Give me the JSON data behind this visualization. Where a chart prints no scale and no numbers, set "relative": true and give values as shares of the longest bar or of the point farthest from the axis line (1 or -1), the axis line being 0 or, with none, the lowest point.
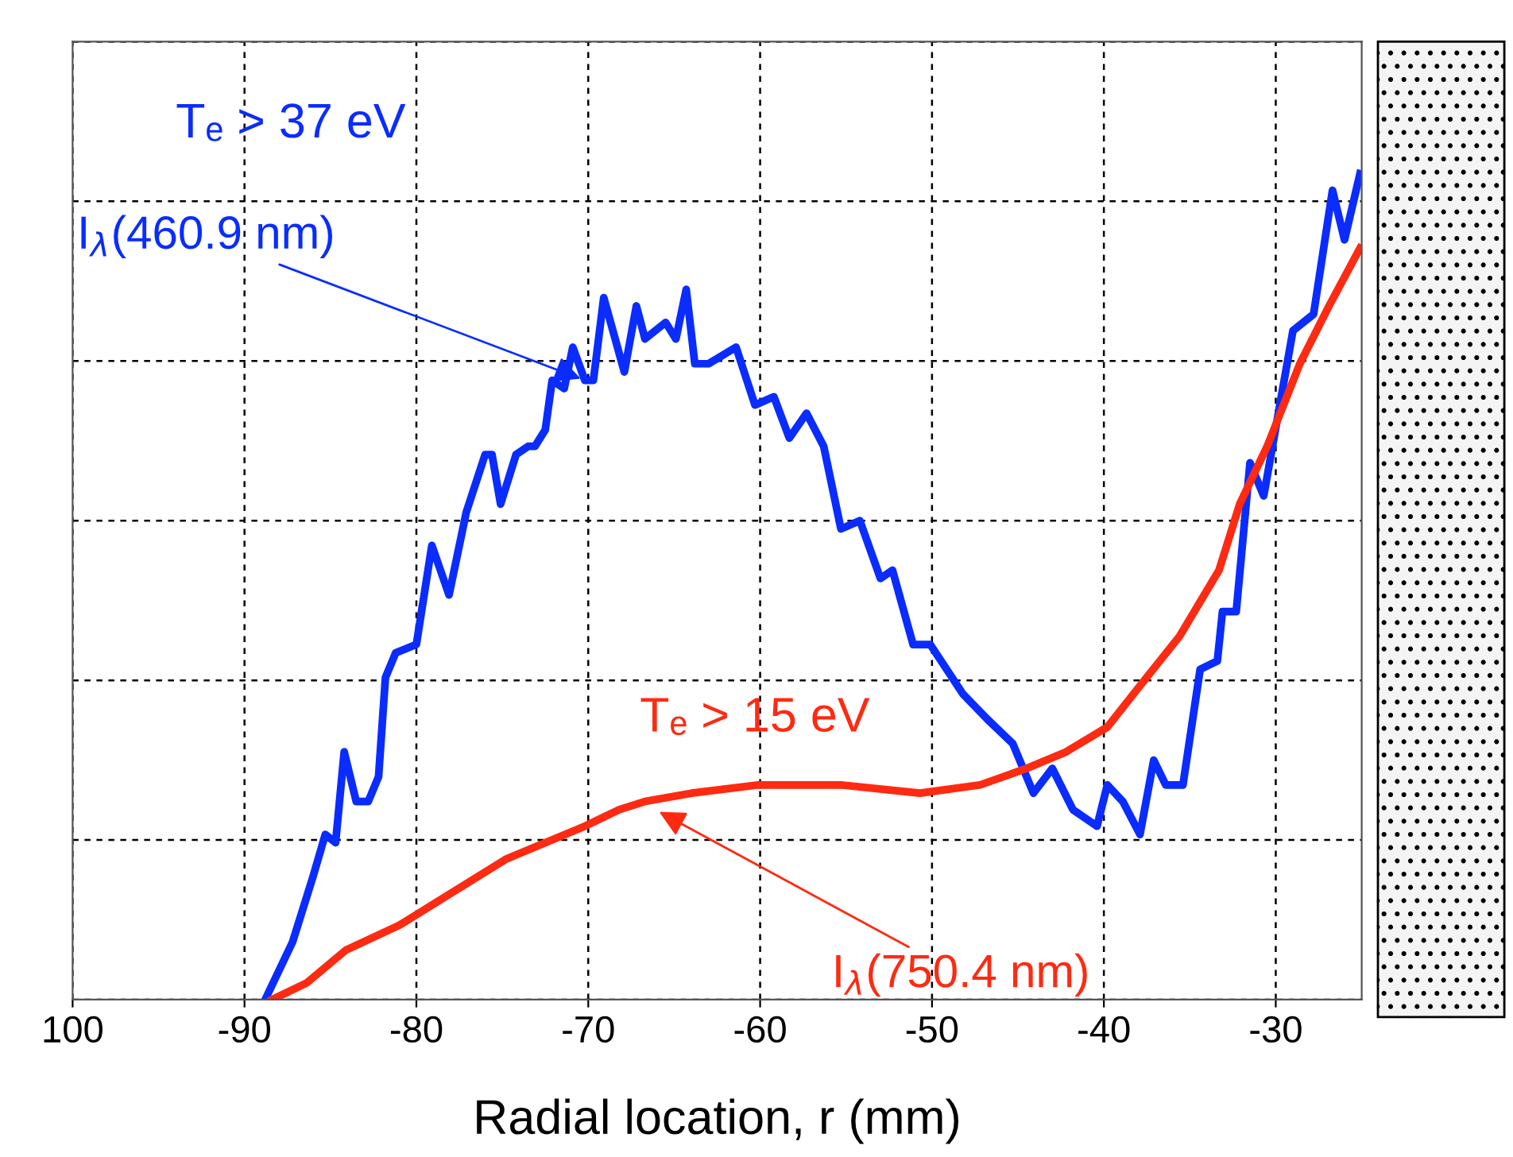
{
  "chart_data": {
    "type": "line",
    "relative": true,
    "xlabel": "Radial location, r (mm)",
    "xlim": [
      -100,
      -25
    ],
    "xticks": [
      {
        "value": -100,
        "label": "100"
      },
      -90,
      -80,
      -70,
      -60,
      -50,
      -40,
      -30
    ],
    "grid": true,
    "line_style": "solid",
    "series": [
      {
        "color": "#0a2cff",
        "x": [
          -88.8,
          -87.2,
          -86.0,
          -85.3,
          -84.7,
          -84.2,
          -83.5,
          -82.8,
          -82.2,
          -81.8,
          -81.2,
          -80.0,
          -79.1,
          -78.1,
          -77.1,
          -76.0,
          -75.6,
          -75.1,
          -74.2,
          -73.5,
          -73.1,
          -72.5,
          -72.1,
          -71.4,
          -70.9,
          -70.2,
          -69.7,
          -69.1,
          -67.9,
          -67.2,
          -66.7,
          -65.5,
          -64.9,
          -64.3,
          -63.8,
          -63.0,
          -61.4,
          -60.3,
          -59.2,
          -58.3,
          -57.3,
          -56.3,
          -55.3,
          -54.2,
          -53.0,
          -52.3,
          -51.1,
          -50.1,
          -48.2,
          -46.8,
          -45.3,
          -44.1,
          -43.0,
          -41.8,
          -40.4,
          -39.8,
          -38.9,
          -37.9,
          -37.1,
          -36.4,
          -35.4,
          -34.4,
          -33.4,
          -33.1,
          -32.3,
          -31.5,
          -30.7,
          -29.0,
          -27.8,
          -26.7,
          -26.0,
          -25.1
        ],
        "values": [
          0,
          0.07,
          0.15,
          0.2,
          0.19,
          0.3,
          0.24,
          0.24,
          0.27,
          0.39,
          0.42,
          0.43,
          0.55,
          0.49,
          0.59,
          0.66,
          0.66,
          0.6,
          0.66,
          0.67,
          0.67,
          0.69,
          0.75,
          0.74,
          0.79,
          0.75,
          0.75,
          0.85,
          0.76,
          0.84,
          0.8,
          0.82,
          0.8,
          0.86,
          0.77,
          0.77,
          0.79,
          0.72,
          0.73,
          0.68,
          0.71,
          0.67,
          0.57,
          0.58,
          0.51,
          0.52,
          0.43,
          0.43,
          0.37,
          0.34,
          0.31,
          0.25,
          0.28,
          0.23,
          0.21,
          0.26,
          0.24,
          0.2,
          0.29,
          0.26,
          0.26,
          0.4,
          0.41,
          0.47,
          0.47,
          0.65,
          0.61,
          0.81,
          0.83,
          0.98,
          0.92,
          1
        ]
      },
      {
        "color": "#ff2a12",
        "x": [
          -88.4,
          -86.4,
          -84.1,
          -81.0,
          -77.9,
          -74.8,
          -72.5,
          -70.2,
          -68.2,
          -66.7,
          -64.0,
          -60.1,
          -58.1,
          -55.3,
          -50.7,
          -47.2,
          -44.5,
          -42.2,
          -39.8,
          -37.9,
          -35.6,
          -33.3,
          -32.1,
          -30.5,
          -28.6,
          -26.9,
          -25.1
        ],
        "values": [
          0,
          0.02,
          0.06,
          0.09,
          0.13,
          0.17,
          0.19,
          0.21,
          0.23,
          0.24,
          0.25,
          0.26,
          0.26,
          0.26,
          0.25,
          0.26,
          0.28,
          0.3,
          0.33,
          0.38,
          0.44,
          0.52,
          0.6,
          0.67,
          0.77,
          0.84,
          0.91
        ]
      }
    ],
    "annotations": [
      "Tₑ > 37 eV",
      "Tₑ > 15 eV",
      {
        "text": "I$_{λ}$(460.9 nm)",
        "x": -70.2,
        "y": 0.75
      },
      {
        "text": "I$_{λ}$(750.4 nm)",
        "x": -66.1,
        "y": 0.23
      }
    ]
  }
}
